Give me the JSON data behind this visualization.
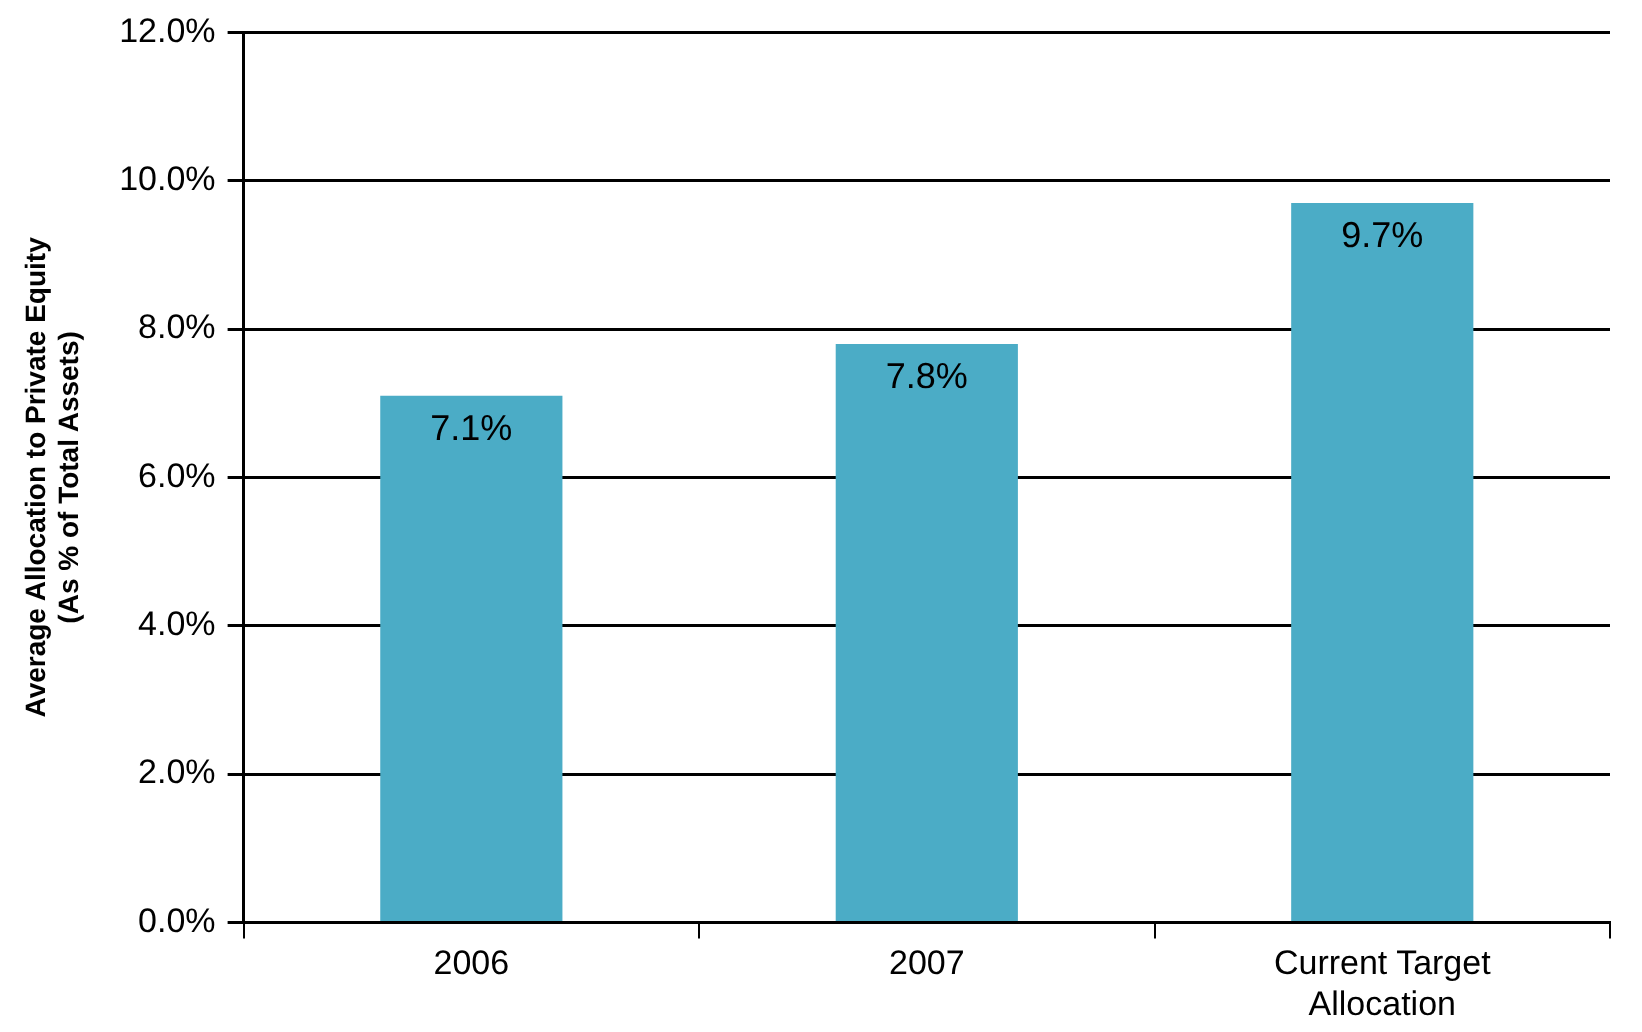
{
  "chart_data": {
    "type": "bar",
    "ylabel": "Average Allocation to Private Equity\n(As % of Total Assets)",
    "categories": [
      "2006",
      "2007",
      "Current Target\nAllocation"
    ],
    "values": [
      7.1,
      7.8,
      9.7
    ],
    "value_labels": [
      "7.1%",
      "7.8%",
      "9.7%"
    ],
    "color": "#4bacc6",
    "ylim": [
      0,
      12
    ],
    "yticks": [
      {
        "value": 0,
        "label": "0.0%"
      },
      {
        "value": 2,
        "label": "2.0%"
      },
      {
        "value": 4,
        "label": "4.0%"
      },
      {
        "value": 6,
        "label": "6.0%"
      },
      {
        "value": 8,
        "label": "8.0%"
      },
      {
        "value": 10,
        "label": "10.0%"
      },
      {
        "value": 12,
        "label": "12.0%"
      }
    ],
    "grid": "y",
    "legend": false
  }
}
